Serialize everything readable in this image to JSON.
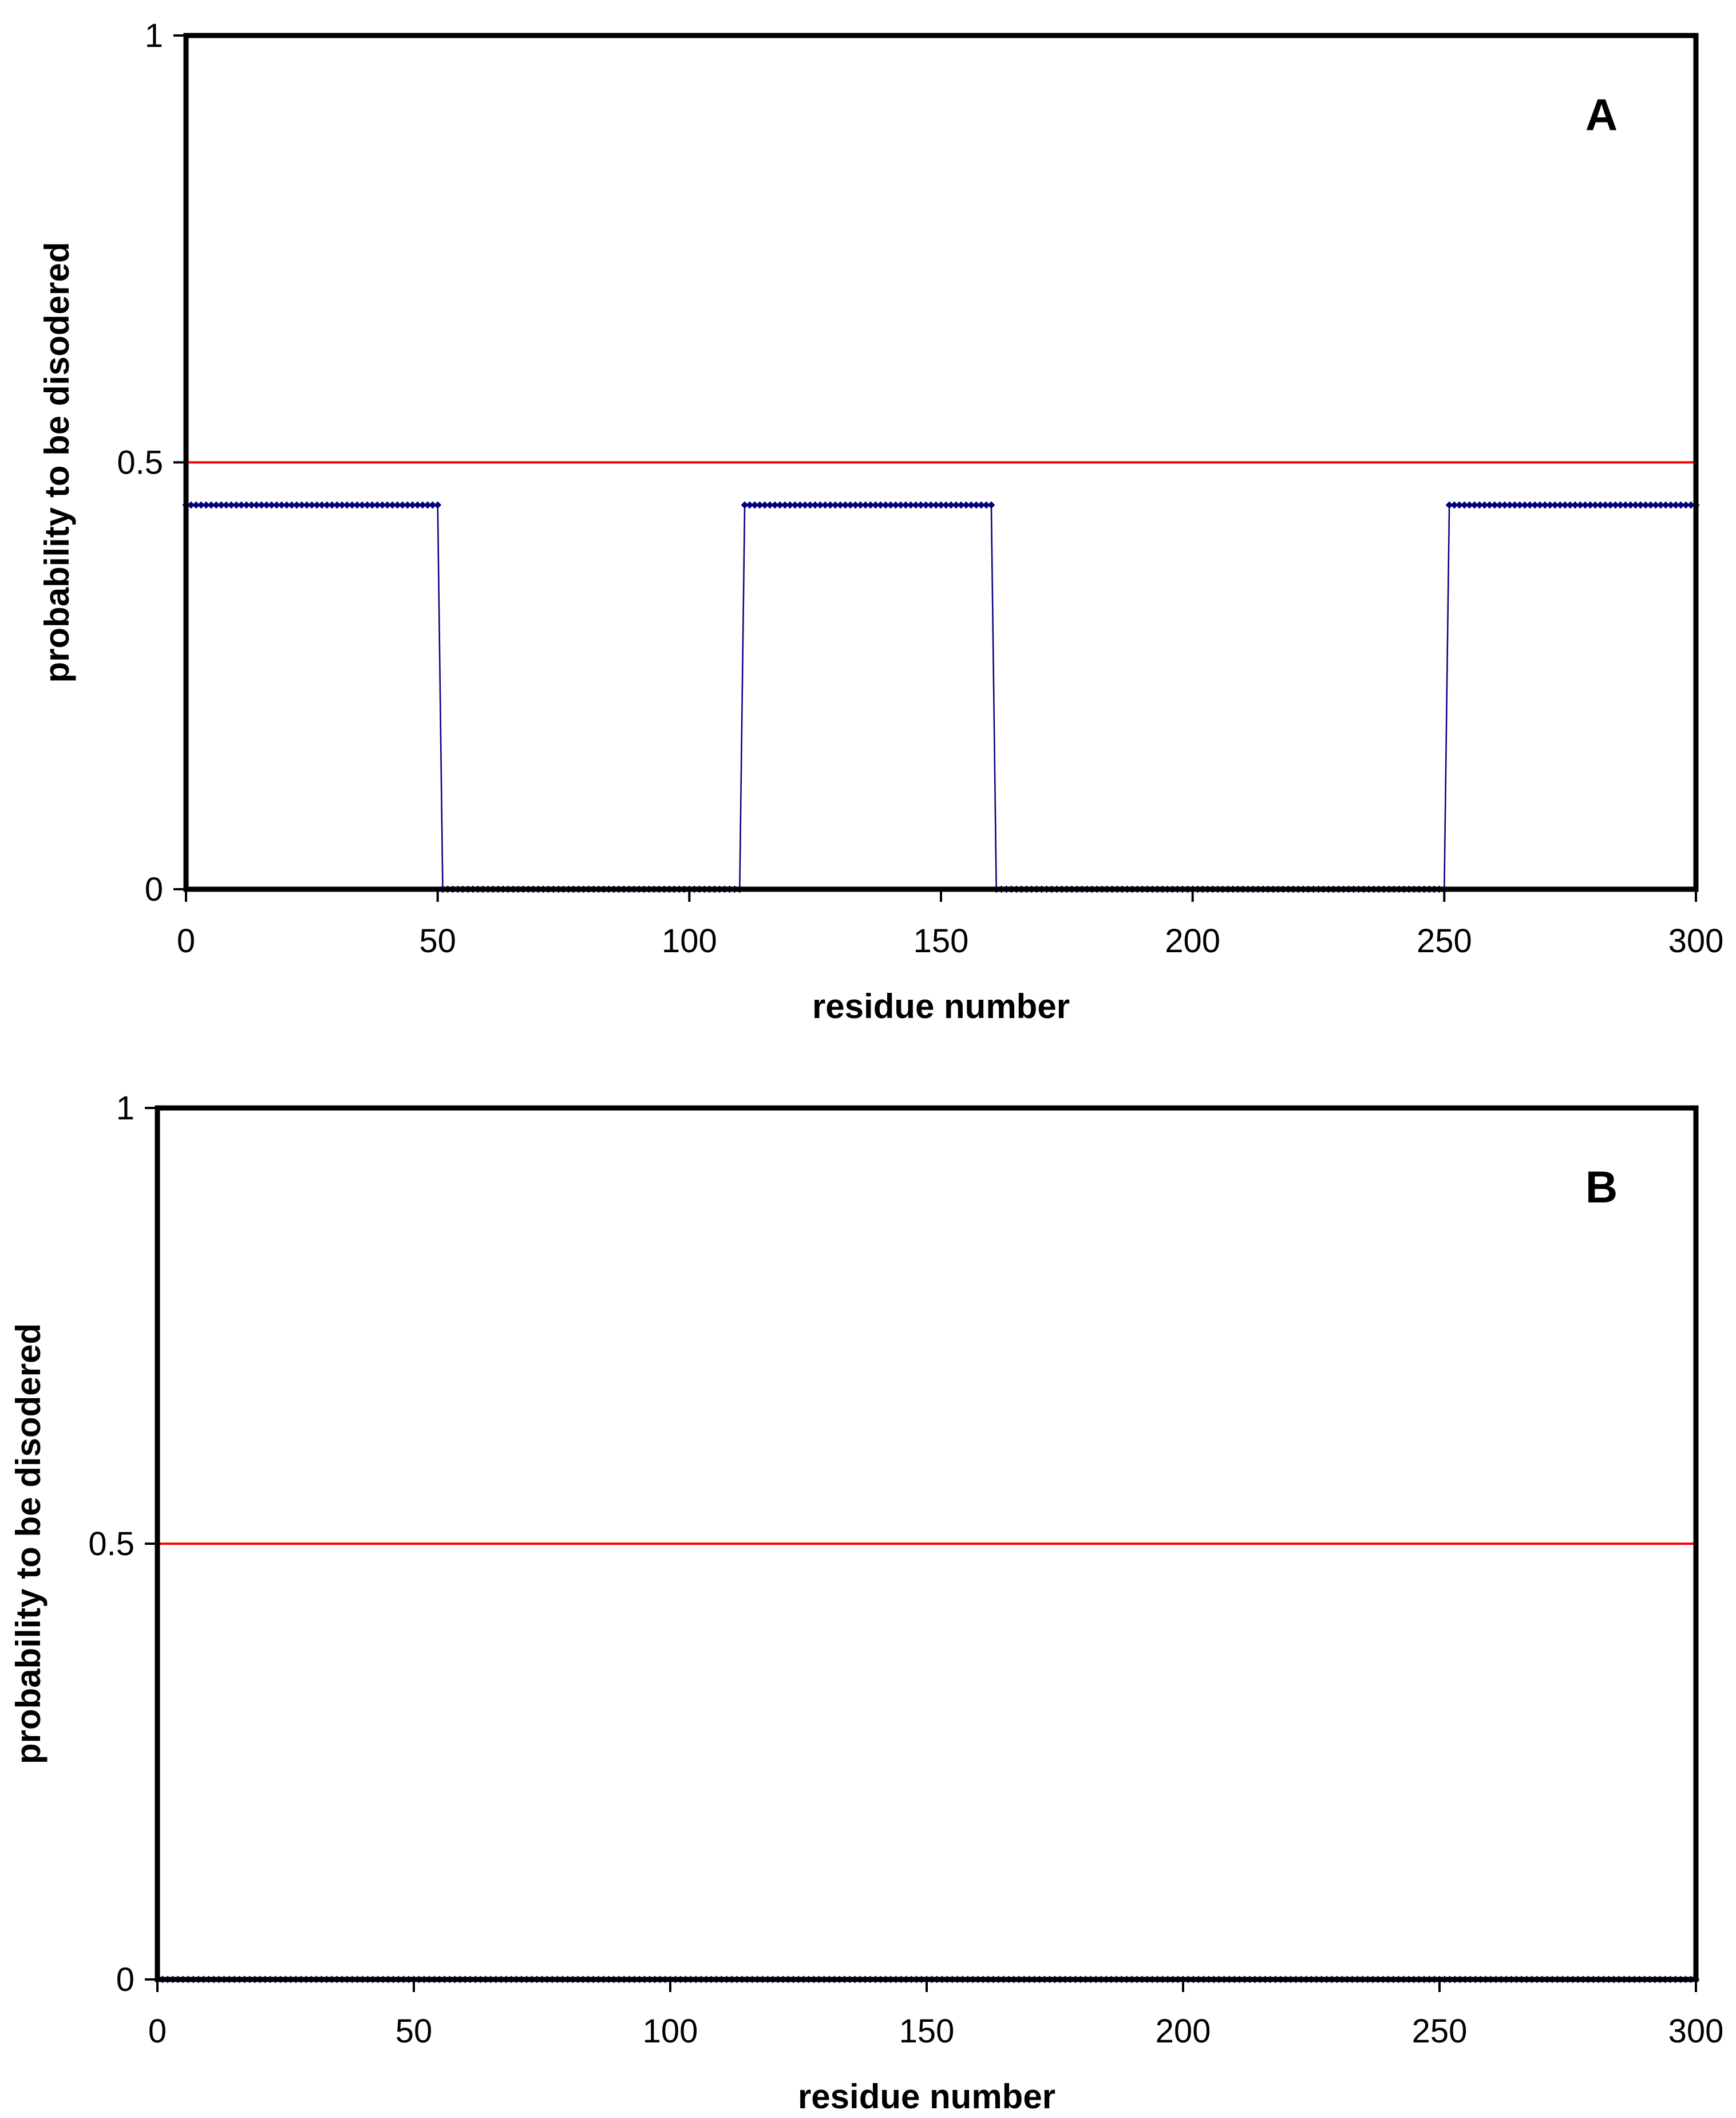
{
  "chart_data": [
    {
      "type": "line",
      "panel_label": "A",
      "xlabel": "residue number",
      "ylabel": "probability to be disodered",
      "xlim": [
        0,
        300
      ],
      "ylim": [
        0,
        1
      ],
      "xticks": [
        0,
        50,
        100,
        150,
        200,
        250,
        300
      ],
      "yticks": [
        0,
        0.5,
        1
      ],
      "xtick_labels": [
        "0",
        "50",
        "100",
        "150",
        "200",
        "250",
        "300"
      ],
      "ytick_labels": [
        "0",
        "0.5",
        "1"
      ],
      "grid": false,
      "legend": "none",
      "threshold": {
        "y": 0.5,
        "color": "#ff0000"
      },
      "series": [
        {
          "color": "#000080",
          "marker": "diamond",
          "x_range": [
            0,
            300
          ],
          "segments": [
            {
              "from": 0,
              "to": 50,
              "value": 0.45
            },
            {
              "from": 51,
              "to": 110,
              "value": 0
            },
            {
              "from": 111,
              "to": 160,
              "value": 0.45
            },
            {
              "from": 161,
              "to": 250,
              "value": 0
            },
            {
              "from": 251,
              "to": 300,
              "value": 0.45
            }
          ]
        }
      ]
    },
    {
      "type": "line",
      "panel_label": "B",
      "xlabel": "residue number",
      "ylabel": "probability to be disodered",
      "xlim": [
        0,
        300
      ],
      "ylim": [
        0,
        1
      ],
      "xticks": [
        0,
        50,
        100,
        150,
        200,
        250,
        300
      ],
      "yticks": [
        0,
        0.5,
        1
      ],
      "xtick_labels": [
        "0",
        "50",
        "100",
        "150",
        "200",
        "250",
        "300"
      ],
      "ytick_labels": [
        "0",
        "0.5",
        "1"
      ],
      "grid": false,
      "legend": "none",
      "threshold": {
        "y": 0.5,
        "color": "#ff0000"
      },
      "series": [
        {
          "color": "#000080",
          "marker": "diamond",
          "x_range": [
            0,
            300
          ],
          "segments": [
            {
              "from": 0,
              "to": 300,
              "value": 0
            }
          ]
        }
      ]
    }
  ]
}
